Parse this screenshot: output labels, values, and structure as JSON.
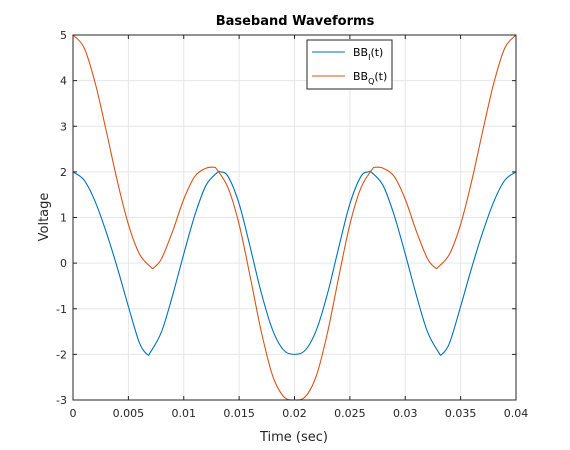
{
  "chart_data": {
    "type": "line",
    "title": "Baseband Waveforms",
    "xlabel": "Time (sec)",
    "ylabel": "Voltage",
    "xlim": [
      0,
      0.04
    ],
    "ylim": [
      -3,
      5
    ],
    "xticks": [
      0,
      0.005,
      0.01,
      0.015,
      0.02,
      0.025,
      0.03,
      0.035,
      0.04
    ],
    "xtick_labels": [
      "0",
      "0.005",
      "0.01",
      "0.015",
      "0.02",
      "0.025",
      "0.03",
      "0.035",
      "0.04"
    ],
    "yticks": [
      -3,
      -2,
      -1,
      0,
      1,
      2,
      3,
      4,
      5
    ],
    "ytick_labels": [
      "-3",
      "-2",
      "-1",
      "0",
      "1",
      "2",
      "3",
      "4",
      "5"
    ],
    "grid": true,
    "legend_position": "top-center",
    "series": [
      {
        "name": "BBI(t)",
        "legend_base": "BB",
        "legend_sub": "I",
        "legend_suffix": "(t)",
        "color": "#0072BD",
        "x": [
          0,
          0.001,
          0.002,
          0.003,
          0.004,
          0.005,
          0.006,
          0.0067,
          0.007,
          0.008,
          0.009,
          0.01,
          0.011,
          0.012,
          0.013,
          0.0133,
          0.014,
          0.015,
          0.016,
          0.017,
          0.018,
          0.019,
          0.02,
          0.021,
          0.022,
          0.023,
          0.024,
          0.025,
          0.026,
          0.0267,
          0.027,
          0.028,
          0.029,
          0.03,
          0.031,
          0.032,
          0.033,
          0.0333,
          0.034,
          0.035,
          0.036,
          0.037,
          0.038,
          0.039,
          0.04
        ],
        "y": [
          2.0,
          1.82,
          1.35,
          0.68,
          -0.1,
          -0.95,
          -1.75,
          -2.0,
          -1.95,
          -1.5,
          -0.7,
          0.2,
          1.05,
          1.7,
          1.98,
          2.0,
          1.9,
          1.3,
          0.35,
          -0.65,
          -1.45,
          -1.9,
          -2.0,
          -1.9,
          -1.45,
          -0.65,
          0.35,
          1.3,
          1.9,
          2.0,
          1.98,
          1.7,
          1.05,
          0.2,
          -0.7,
          -1.5,
          -1.95,
          -2.0,
          -1.75,
          -0.95,
          -0.1,
          0.68,
          1.35,
          1.82,
          2.0
        ]
      },
      {
        "name": "BBQ(t)",
        "legend_base": "BB",
        "legend_sub": "Q",
        "legend_suffix": "(t)",
        "color": "#D95319",
        "x": [
          0,
          0.001,
          0.002,
          0.003,
          0.004,
          0.005,
          0.006,
          0.007,
          0.0073,
          0.008,
          0.009,
          0.01,
          0.011,
          0.012,
          0.0127,
          0.013,
          0.014,
          0.015,
          0.016,
          0.017,
          0.018,
          0.019,
          0.02,
          0.021,
          0.022,
          0.023,
          0.024,
          0.025,
          0.026,
          0.027,
          0.0273,
          0.028,
          0.029,
          0.03,
          0.031,
          0.032,
          0.0327,
          0.033,
          0.034,
          0.035,
          0.036,
          0.037,
          0.038,
          0.039,
          0.04
        ],
        "y": [
          5.0,
          4.72,
          3.95,
          2.9,
          1.8,
          0.85,
          0.2,
          -0.08,
          -0.1,
          0.1,
          0.7,
          1.4,
          1.9,
          2.08,
          2.1,
          2.05,
          1.65,
          0.85,
          -0.3,
          -1.5,
          -2.45,
          -2.92,
          -3.0,
          -2.92,
          -2.45,
          -1.5,
          -0.3,
          0.85,
          1.65,
          2.05,
          2.1,
          2.08,
          1.9,
          1.4,
          0.7,
          0.1,
          -0.1,
          -0.08,
          0.2,
          0.85,
          1.8,
          2.9,
          3.95,
          4.72,
          5.0
        ]
      }
    ]
  }
}
